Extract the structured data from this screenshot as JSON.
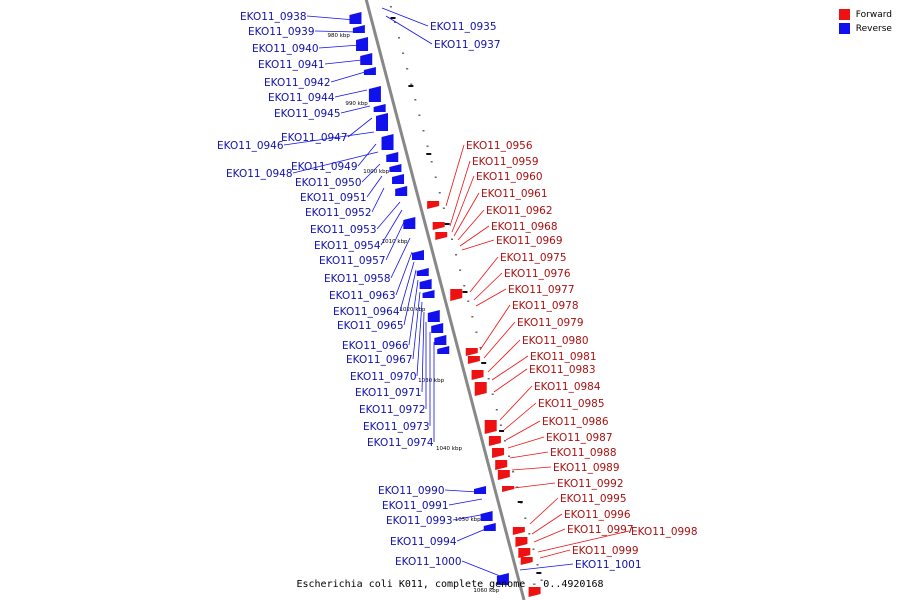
{
  "caption": "Escherichia coli K011, complete genome - 0..4920168",
  "legend": [
    {
      "label": "Forward",
      "color": "#ee1111"
    },
    {
      "label": "Reverse",
      "color": "#1111ee"
    }
  ],
  "colors": {
    "forward": "#ee1111",
    "reverse": "#1111ee",
    "axis": "#888888"
  },
  "ticks": [
    {
      "label": "980 kbp",
      "kbp": 980
    },
    {
      "label": "990 kbp",
      "kbp": 990
    },
    {
      "label": "1000 kbp",
      "kbp": 1000
    },
    {
      "label": "1010 kbp",
      "kbp": 1010
    },
    {
      "label": "1020 kbp",
      "kbp": 1020
    },
    {
      "label": "1030 kbp",
      "kbp": 1030
    },
    {
      "label": "1040 kbp",
      "kbp": 1040
    },
    {
      "label": "1050 kbp",
      "kbp": 1050
    },
    {
      "label": "1060 kbp",
      "kbp": 1060
    }
  ],
  "reverse_genes": [
    "EKO11_0938",
    "EKO11_0939",
    "EKO11_0940",
    "EKO11_0941",
    "EKO11_0942",
    "EKO11_0944",
    "EKO11_0945",
    "EKO11_0947",
    "EKO11_0946",
    "EKO11_0949",
    "EKO11_0948",
    "EKO11_0950",
    "EKO11_0951",
    "EKO11_0952",
    "EKO11_0953",
    "EKO11_0954",
    "EKO11_0957",
    "EKO11_0958",
    "EKO11_0963",
    "EKO11_0964",
    "EKO11_0965",
    "EKO11_0966",
    "EKO11_0967",
    "EKO11_0970",
    "EKO11_0971",
    "EKO11_0972",
    "EKO11_0973",
    "EKO11_0974",
    "EKO11_0990",
    "EKO11_0991",
    "EKO11_0993",
    "EKO11_0994",
    "EKO11_1000"
  ],
  "reverse_right_genes": [
    "EKO11_0935",
    "EKO11_0937",
    "EKO11_1001"
  ],
  "forward_genes": [
    "EKO11_0956",
    "EKO11_0959",
    "EKO11_0960",
    "EKO11_0961",
    "EKO11_0962",
    "EKO11_0968",
    "EKO11_0969",
    "EKO11_0975",
    "EKO11_0976",
    "EKO11_0977",
    "EKO11_0978",
    "EKO11_0979",
    "EKO11_0980",
    "EKO11_0981",
    "EKO11_0983",
    "EKO11_0984",
    "EKO11_0985",
    "EKO11_0986",
    "EKO11_0987",
    "EKO11_0988",
    "EKO11_0989",
    "EKO11_0992",
    "EKO11_0995",
    "EKO11_0996",
    "EKO11_0997",
    "EKO11_0998",
    "EKO11_0999"
  ]
}
